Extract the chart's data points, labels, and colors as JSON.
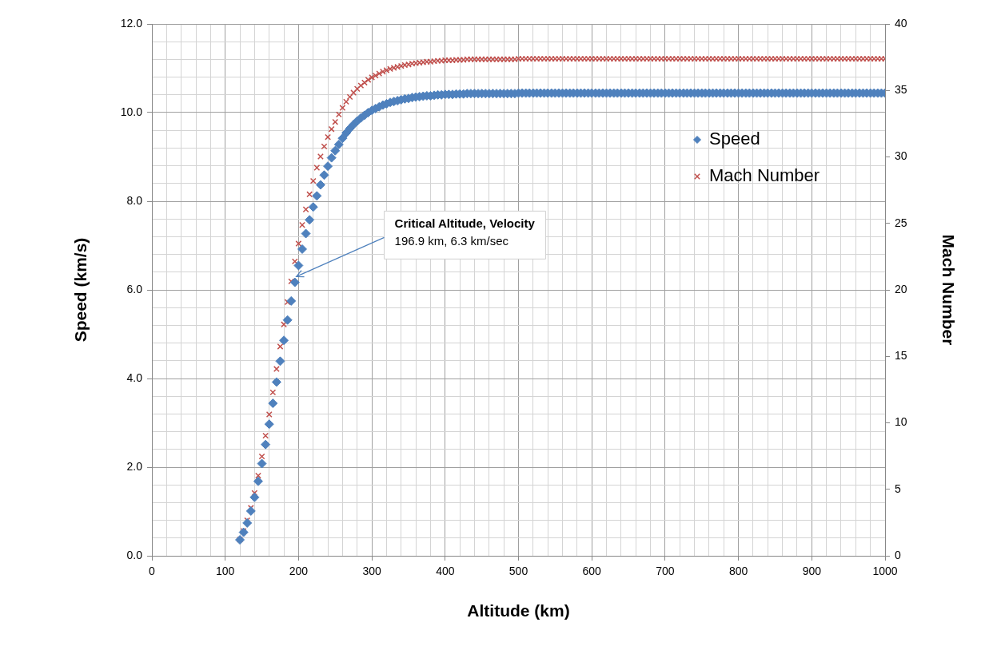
{
  "chart_data": {
    "type": "scatter",
    "xlabel": "Altitude (km)",
    "ylabel": "Speed (km/s)",
    "y2label": "Mach Number",
    "annotations": [
      {
        "text": "Critical Altitude, Velocity\n196.9 km, 6.3 km/sec",
        "x": 196.9,
        "y": 6.3
      }
    ],
    "x": [
      120,
      125,
      130,
      135,
      140,
      145,
      150,
      155,
      160,
      165,
      170,
      175,
      180,
      185,
      190,
      195,
      200,
      205,
      210,
      215,
      220,
      225,
      230,
      235,
      240,
      245,
      250,
      255,
      260,
      265,
      270,
      275,
      280,
      285,
      290,
      295,
      300,
      305,
      310,
      315,
      320,
      325,
      330,
      335,
      340,
      345,
      350,
      355,
      360,
      365,
      370,
      375,
      380,
      385,
      390,
      395,
      400,
      405,
      410,
      415,
      420,
      425,
      430,
      435,
      440,
      445,
      450,
      455,
      460,
      465,
      470,
      475,
      480,
      485,
      490,
      495,
      500,
      505,
      510,
      515,
      520,
      525,
      530,
      535,
      540,
      545,
      550,
      555,
      560,
      565,
      570,
      575,
      580,
      585,
      590,
      595,
      600,
      605,
      610,
      615,
      620,
      625,
      630,
      635,
      640,
      645,
      650,
      655,
      660,
      665,
      670,
      675,
      680,
      685,
      690,
      695,
      700,
      705,
      710,
      715,
      720,
      725,
      730,
      735,
      740,
      745,
      750,
      755,
      760,
      765,
      770,
      775,
      780,
      785,
      790,
      795,
      800,
      805,
      810,
      815,
      820,
      825,
      830,
      835,
      840,
      845,
      850,
      855,
      860,
      865,
      870,
      875,
      880,
      885,
      890,
      895,
      900,
      905,
      910,
      915,
      920,
      925,
      930,
      935,
      940,
      945,
      950,
      955,
      960,
      965,
      970,
      975,
      980,
      985,
      990,
      995,
      1000
    ],
    "series": [
      {
        "name": "Speed",
        "color": "#4f81bd",
        "marker": "diamond",
        "values": [
          0.36,
          0.53,
          0.74,
          1.01,
          1.32,
          1.68,
          2.08,
          2.51,
          2.97,
          3.44,
          3.92,
          4.39,
          4.86,
          5.32,
          5.75,
          6.17,
          6.55,
          6.92,
          7.27,
          7.58,
          7.87,
          8.12,
          8.37,
          8.59,
          8.79,
          8.98,
          9.14,
          9.28,
          9.42,
          9.54,
          9.64,
          9.73,
          9.81,
          9.88,
          9.94,
          10.0,
          10.05,
          10.09,
          10.13,
          10.17,
          10.2,
          10.23,
          10.25,
          10.27,
          10.29,
          10.31,
          10.32,
          10.34,
          10.35,
          10.36,
          10.37,
          10.38,
          10.38,
          10.39,
          10.4,
          10.4,
          10.41,
          10.41,
          10.41,
          10.42,
          10.42,
          10.42,
          10.43,
          10.43,
          10.43,
          10.43,
          10.43,
          10.43,
          10.43,
          10.43,
          10.43,
          10.43,
          10.43,
          10.43,
          10.43,
          10.43,
          10.44,
          10.44,
          10.44,
          10.44,
          10.44,
          10.44,
          10.44,
          10.44,
          10.44,
          10.44,
          10.44,
          10.44,
          10.44,
          10.44,
          10.44,
          10.44,
          10.44,
          10.44,
          10.44,
          10.44,
          10.44,
          10.44,
          10.44,
          10.44,
          10.44,
          10.44,
          10.44,
          10.44,
          10.44,
          10.44,
          10.44,
          10.44,
          10.44,
          10.44,
          10.44,
          10.44,
          10.44,
          10.44,
          10.44,
          10.44,
          10.44,
          10.44,
          10.44,
          10.44,
          10.44,
          10.44,
          10.44,
          10.44,
          10.44,
          10.44,
          10.44,
          10.44,
          10.44,
          10.44,
          10.44,
          10.44,
          10.44,
          10.44,
          10.44,
          10.44,
          10.44,
          10.44,
          10.44,
          10.44,
          10.44,
          10.44,
          10.44,
          10.44,
          10.44,
          10.44,
          10.44,
          10.44,
          10.44,
          10.44,
          10.44,
          10.44,
          10.44,
          10.44,
          10.44,
          10.44,
          10.44,
          10.44,
          10.44,
          10.44,
          10.44,
          10.44,
          10.44,
          10.44,
          10.44,
          10.44,
          10.44,
          10.44,
          10.44,
          10.44,
          10.44,
          10.44,
          10.44,
          10.44,
          10.44,
          10.44,
          10.44
        ]
      },
      {
        "name": "Mach Number",
        "color": "#c0504d",
        "marker": "cross",
        "axis": "y2",
        "values": [
          1.22,
          1.86,
          2.66,
          3.6,
          4.72,
          6.03,
          7.47,
          9.03,
          10.63,
          12.29,
          14.05,
          15.74,
          17.4,
          19.08,
          20.64,
          22.14,
          23.48,
          24.88,
          26.05,
          27.19,
          28.19,
          29.19,
          30.03,
          30.79,
          31.49,
          32.09,
          32.63,
          33.19,
          33.69,
          34.15,
          34.51,
          34.83,
          35.12,
          35.37,
          35.59,
          35.8,
          35.98,
          36.12,
          36.27,
          36.41,
          36.52,
          36.62,
          36.7,
          36.77,
          36.84,
          36.91,
          36.95,
          37.02,
          37.05,
          37.09,
          37.12,
          37.16,
          37.16,
          37.2,
          37.23,
          37.23,
          37.27,
          37.27,
          37.27,
          37.3,
          37.3,
          37.3,
          37.34,
          37.34,
          37.34,
          37.34,
          37.34,
          37.34,
          37.34,
          37.34,
          37.34,
          37.34,
          37.34,
          37.34,
          37.34,
          37.34,
          37.38,
          37.38,
          37.38,
          37.38,
          37.38,
          37.38,
          37.38,
          37.38,
          37.38,
          37.38,
          37.38,
          37.38,
          37.38,
          37.38,
          37.38,
          37.38,
          37.38,
          37.38,
          37.38,
          37.38,
          37.38,
          37.38,
          37.38,
          37.38,
          37.38,
          37.38,
          37.38,
          37.38,
          37.38,
          37.38,
          37.38,
          37.38,
          37.38,
          37.38,
          37.38,
          37.38,
          37.38,
          37.38,
          37.38,
          37.38,
          37.38,
          37.38,
          37.38,
          37.38,
          37.38,
          37.38,
          37.38,
          37.38,
          37.38,
          37.38,
          37.38,
          37.38,
          37.38,
          37.38,
          37.38,
          37.38,
          37.38,
          37.38,
          37.38,
          37.38,
          37.38,
          37.38,
          37.38,
          37.38,
          37.38,
          37.38,
          37.38,
          37.38,
          37.38,
          37.38,
          37.38,
          37.38,
          37.38,
          37.38,
          37.38,
          37.38,
          37.38,
          37.38,
          37.38,
          37.38,
          37.38,
          37.38,
          37.38,
          37.38,
          37.38,
          37.38,
          37.38,
          37.38,
          37.38,
          37.38,
          37.38,
          37.38,
          37.38,
          37.38,
          37.38,
          37.38,
          37.38,
          37.38,
          37.38,
          37.38,
          37.38
        ]
      }
    ],
    "xlim": [
      0,
      1000
    ],
    "xticks": [
      0,
      {
        "value": 20,
        "label": null
      },
      {
        "value": 40,
        "label": null
      },
      {
        "value": 60,
        "label": null
      },
      {
        "value": 80,
        "label": null
      },
      100,
      {
        "value": 120,
        "label": null
      },
      {
        "value": 140,
        "label": null
      },
      {
        "value": 160,
        "label": null
      },
      {
        "value": 180,
        "label": null
      },
      200,
      {
        "value": 220,
        "label": null
      },
      {
        "value": 240,
        "label": null
      },
      {
        "value": 260,
        "label": null
      },
      {
        "value": 280,
        "label": null
      },
      300,
      {
        "value": 320,
        "label": null
      },
      {
        "value": 340,
        "label": null
      },
      {
        "value": 360,
        "label": null
      },
      {
        "value": 380,
        "label": null
      },
      400,
      {
        "value": 420,
        "label": null
      },
      {
        "value": 440,
        "label": null
      },
      {
        "value": 460,
        "label": null
      },
      {
        "value": 480,
        "label": null
      },
      500,
      {
        "value": 520,
        "label": null
      },
      {
        "value": 540,
        "label": null
      },
      {
        "value": 560,
        "label": null
      },
      {
        "value": 580,
        "label": null
      },
      600,
      {
        "value": 620,
        "label": null
      },
      {
        "value": 640,
        "label": null
      },
      {
        "value": 660,
        "label": null
      },
      {
        "value": 680,
        "label": null
      },
      700,
      {
        "value": 720,
        "label": null
      },
      {
        "value": 740,
        "label": null
      },
      {
        "value": 760,
        "label": null
      },
      {
        "value": 780,
        "label": null
      },
      800,
      {
        "value": 820,
        "label": null
      },
      {
        "value": 840,
        "label": null
      },
      {
        "value": 860,
        "label": null
      },
      {
        "value": 880,
        "label": null
      },
      900,
      {
        "value": 920,
        "label": null
      },
      {
        "value": 940,
        "label": null
      },
      {
        "value": 960,
        "label": null
      },
      {
        "value": 980,
        "label": null
      },
      1000
    ],
    "ylim": [
      0,
      12
    ],
    "yticks": [
      {
        "value": 0,
        "label": "0.0"
      },
      {
        "value": 0.4,
        "label": null
      },
      {
        "value": 0.8,
        "label": null
      },
      {
        "value": 1.2,
        "label": null
      },
      {
        "value": 1.6,
        "label": null
      },
      {
        "value": 2,
        "label": "2.0"
      },
      {
        "value": 2.4,
        "label": null
      },
      {
        "value": 2.8,
        "label": null
      },
      {
        "value": 3.2,
        "label": null
      },
      {
        "value": 3.6,
        "label": null
      },
      {
        "value": 4,
        "label": "4.0"
      },
      {
        "value": 4.4,
        "label": null
      },
      {
        "value": 4.8,
        "label": null
      },
      {
        "value": 5.2,
        "label": null
      },
      {
        "value": 5.6,
        "label": null
      },
      {
        "value": 6,
        "label": "6.0"
      },
      {
        "value": 6.4,
        "label": null
      },
      {
        "value": 6.8,
        "label": null
      },
      {
        "value": 7.2,
        "label": null
      },
      {
        "value": 7.6,
        "label": null
      },
      {
        "value": 8,
        "label": "8.0"
      },
      {
        "value": 8.4,
        "label": null
      },
      {
        "value": 8.8,
        "label": null
      },
      {
        "value": 9.2,
        "label": null
      },
      {
        "value": 9.6,
        "label": null
      },
      {
        "value": 10,
        "label": "10.0"
      },
      {
        "value": 10.4,
        "label": null
      },
      {
        "value": 10.8,
        "label": null
      },
      {
        "value": 11.2,
        "label": null
      },
      {
        "value": 11.6,
        "label": null
      },
      {
        "value": 12,
        "label": "12.0"
      }
    ],
    "y2lim": [
      0,
      40
    ],
    "y2ticks": [
      0,
      5,
      10,
      15,
      20,
      25,
      30,
      35,
      40
    ],
    "grid": true,
    "legend": "top right"
  }
}
